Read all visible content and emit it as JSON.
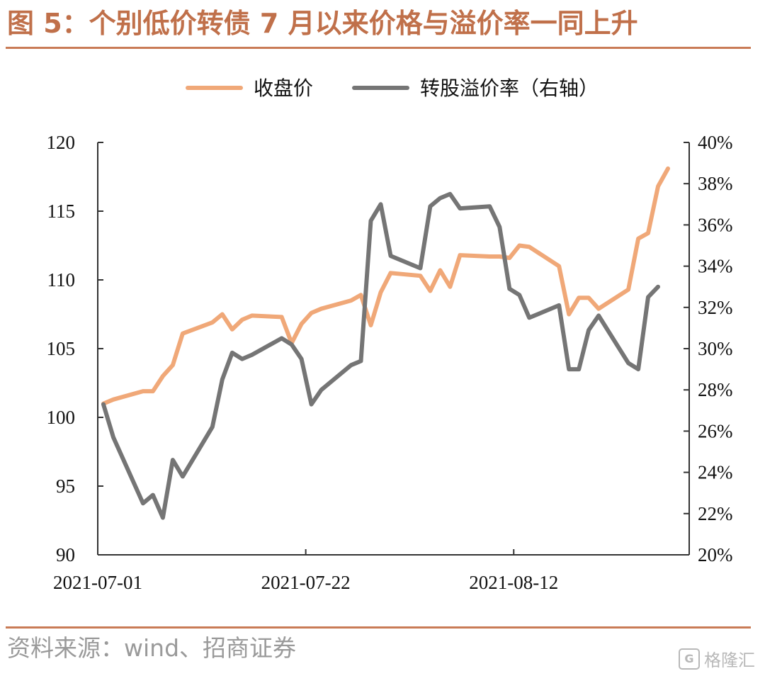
{
  "figure": {
    "title": "图 5：个别低价转债 7 月以来价格与溢价率一同上升",
    "source": "资料来源：wind、招商证券",
    "watermark": "格隆汇"
  },
  "chart_data": {
    "type": "line",
    "legend": {
      "placement": "top-center"
    },
    "grid": false,
    "x_ticks": [
      "2021-07-01",
      "2021-07-22",
      "2021-08-12"
    ],
    "left_axis": {
      "ylim": [
        90,
        120
      ],
      "ticks": [
        "90",
        "95",
        "100",
        "105",
        "110",
        "115",
        "120"
      ]
    },
    "right_axis": {
      "ylim": [
        20,
        40
      ],
      "ticks": [
        "20%",
        "22%",
        "24%",
        "26%",
        "28%",
        "30%",
        "32%",
        "34%",
        "36%",
        "38%",
        "40%"
      ]
    },
    "series": [
      {
        "name": "收盘价",
        "axis": "left",
        "color": "#f0a878",
        "points": [
          [
            "2021-07-01",
            101.0
          ],
          [
            "2021-07-02",
            101.3
          ],
          [
            "2021-07-05",
            101.9
          ],
          [
            "2021-07-06",
            101.9
          ],
          [
            "2021-07-07",
            103.0
          ],
          [
            "2021-07-08",
            103.8
          ],
          [
            "2021-07-09",
            106.1
          ],
          [
            "2021-07-12",
            106.9
          ],
          [
            "2021-07-13",
            107.5
          ],
          [
            "2021-07-14",
            106.4
          ],
          [
            "2021-07-15",
            107.1
          ],
          [
            "2021-07-16",
            107.4
          ],
          [
            "2021-07-19",
            107.3
          ],
          [
            "2021-07-20",
            105.4
          ],
          [
            "2021-07-21",
            106.8
          ],
          [
            "2021-07-22",
            107.6
          ],
          [
            "2021-07-23",
            107.9
          ],
          [
            "2021-07-26",
            108.5
          ],
          [
            "2021-07-27",
            108.9
          ],
          [
            "2021-07-28",
            106.7
          ],
          [
            "2021-07-29",
            109.1
          ],
          [
            "2021-07-30",
            110.5
          ],
          [
            "2021-08-02",
            110.3
          ],
          [
            "2021-08-03",
            109.2
          ],
          [
            "2021-08-04",
            110.7
          ],
          [
            "2021-08-05",
            109.5
          ],
          [
            "2021-08-06",
            111.8
          ],
          [
            "2021-08-09",
            111.7
          ],
          [
            "2021-08-10",
            111.7
          ],
          [
            "2021-08-11",
            111.6
          ],
          [
            "2021-08-12",
            112.5
          ],
          [
            "2021-08-13",
            112.4
          ],
          [
            "2021-08-16",
            111.0
          ],
          [
            "2021-08-17",
            107.5
          ],
          [
            "2021-08-18",
            108.7
          ],
          [
            "2021-08-19",
            108.7
          ],
          [
            "2021-08-20",
            107.9
          ],
          [
            "2021-08-23",
            109.3
          ],
          [
            "2021-08-24",
            113.0
          ],
          [
            "2021-08-25",
            113.4
          ],
          [
            "2021-08-26",
            116.8
          ],
          [
            "2021-08-27",
            118.1
          ]
        ]
      },
      {
        "name": "转股溢价率（右轴）",
        "axis": "right",
        "color": "#757575",
        "points": [
          [
            "2021-07-01",
            27.3
          ],
          [
            "2021-07-02",
            25.7
          ],
          [
            "2021-07-05",
            22.5
          ],
          [
            "2021-07-06",
            22.9
          ],
          [
            "2021-07-07",
            21.8
          ],
          [
            "2021-07-08",
            24.6
          ],
          [
            "2021-07-09",
            23.8
          ],
          [
            "2021-07-12",
            26.2
          ],
          [
            "2021-07-13",
            28.5
          ],
          [
            "2021-07-14",
            29.8
          ],
          [
            "2021-07-15",
            29.5
          ],
          [
            "2021-07-16",
            29.7
          ],
          [
            "2021-07-19",
            30.5
          ],
          [
            "2021-07-20",
            30.2
          ],
          [
            "2021-07-21",
            29.5
          ],
          [
            "2021-07-22",
            27.3
          ],
          [
            "2021-07-23",
            28.0
          ],
          [
            "2021-07-26",
            29.2
          ],
          [
            "2021-07-27",
            29.4
          ],
          [
            "2021-07-28",
            36.2
          ],
          [
            "2021-07-29",
            37.0
          ],
          [
            "2021-07-30",
            34.5
          ],
          [
            "2021-08-02",
            33.9
          ],
          [
            "2021-08-03",
            36.9
          ],
          [
            "2021-08-04",
            37.3
          ],
          [
            "2021-08-05",
            37.5
          ],
          [
            "2021-08-06",
            36.8
          ],
          [
            "2021-08-09",
            36.9
          ],
          [
            "2021-08-10",
            35.9
          ],
          [
            "2021-08-11",
            32.9
          ],
          [
            "2021-08-12",
            32.6
          ],
          [
            "2021-08-13",
            31.5
          ],
          [
            "2021-08-16",
            32.1
          ],
          [
            "2021-08-17",
            29.0
          ],
          [
            "2021-08-18",
            29.0
          ],
          [
            "2021-08-19",
            30.9
          ],
          [
            "2021-08-20",
            31.6
          ],
          [
            "2021-08-23",
            29.3
          ],
          [
            "2021-08-24",
            29.0
          ],
          [
            "2021-08-25",
            32.5
          ],
          [
            "2021-08-26",
            33.0
          ]
        ]
      }
    ]
  }
}
